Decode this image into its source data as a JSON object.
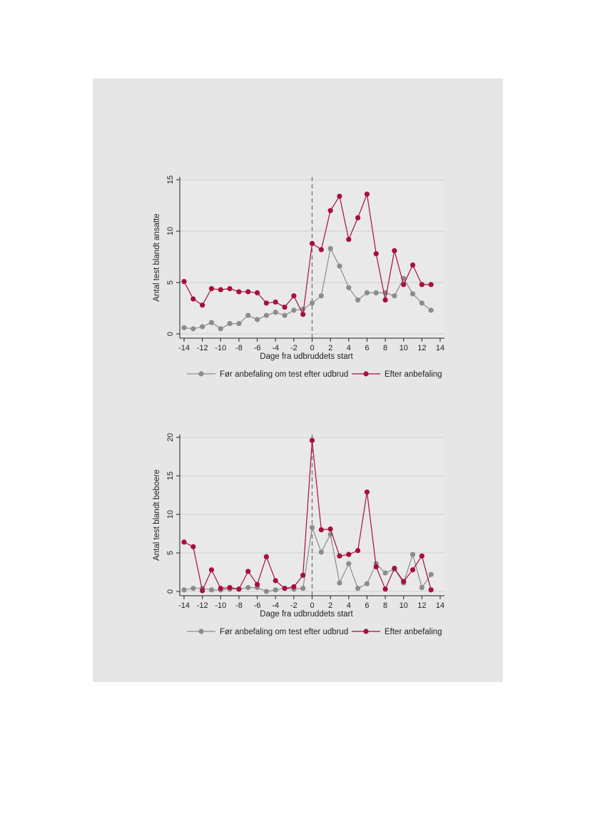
{
  "chart_data": [
    {
      "type": "line",
      "xlabel": "Dage fra udbruddets start",
      "ylabel": "Antal test blandt ansatte",
      "xlim": [
        -14,
        14
      ],
      "ylim": [
        0,
        15
      ],
      "xticks": [
        -14,
        -12,
        -10,
        -8,
        -6,
        -4,
        -2,
        0,
        2,
        4,
        6,
        8,
        10,
        12,
        14
      ],
      "yticks": [
        0,
        5,
        10,
        15
      ],
      "grid": true,
      "vline_x": 0,
      "legend_position": "bottom",
      "x": [
        -14,
        -13,
        -12,
        -11,
        -10,
        -9,
        -8,
        -7,
        -6,
        -5,
        -4,
        -3,
        -2,
        -1,
        0,
        1,
        2,
        3,
        4,
        5,
        6,
        7,
        8,
        9,
        10,
        11,
        12,
        13
      ],
      "series": [
        {
          "name": "Før anbefaling om test efter udbrud",
          "color": "#8c8c8c",
          "values": [
            0.6,
            0.5,
            0.7,
            1.1,
            0.5,
            1.0,
            1.0,
            1.8,
            1.4,
            1.8,
            2.1,
            1.8,
            2.3,
            2.4,
            3.0,
            3.7,
            8.3,
            6.6,
            4.5,
            3.3,
            4.0,
            4.0,
            4.0,
            3.7,
            5.4,
            3.9,
            3.0,
            2.3
          ]
        },
        {
          "name": "Efter anbefaling",
          "color": "#a80f3a",
          "values": [
            5.1,
            3.4,
            2.8,
            4.4,
            4.3,
            4.4,
            4.1,
            4.1,
            4.0,
            3.0,
            3.1,
            2.6,
            3.7,
            1.9,
            8.8,
            8.2,
            12.0,
            13.4,
            9.2,
            11.3,
            13.6,
            7.8,
            3.3,
            8.1,
            4.8,
            6.7,
            4.8,
            4.8
          ]
        }
      ]
    },
    {
      "type": "line",
      "xlabel": "Dage fra udbruddets start",
      "ylabel": "Antal test blandt beboere",
      "xlim": [
        -14,
        14
      ],
      "ylim": [
        0,
        20
      ],
      "xticks": [
        -14,
        -12,
        -10,
        -8,
        -6,
        -4,
        -2,
        0,
        2,
        4,
        6,
        8,
        10,
        12,
        14
      ],
      "yticks": [
        0,
        5,
        10,
        15,
        20
      ],
      "grid": true,
      "vline_x": 0,
      "legend_position": "bottom",
      "x": [
        -14,
        -13,
        -12,
        -11,
        -10,
        -9,
        -8,
        -7,
        -6,
        -5,
        -4,
        -3,
        -2,
        -1,
        0,
        1,
        2,
        3,
        4,
        5,
        6,
        7,
        8,
        9,
        10,
        11,
        12,
        13
      ],
      "series": [
        {
          "name": "Før anbefaling om test efter udbrud",
          "color": "#8c8c8c",
          "values": [
            0.2,
            0.4,
            0.4,
            0.2,
            0.2,
            0.3,
            0.3,
            0.5,
            0.5,
            0.0,
            0.2,
            0.4,
            0.3,
            0.4,
            8.3,
            5.1,
            7.4,
            1.1,
            3.6,
            0.4,
            1.0,
            3.6,
            2.4,
            2.9,
            1.1,
            4.8,
            0.5,
            2.2
          ]
        },
        {
          "name": "Efter anbefaling",
          "color": "#a80f3a",
          "values": [
            6.4,
            5.8,
            0.1,
            2.8,
            0.4,
            0.5,
            0.3,
            2.6,
            0.9,
            4.5,
            1.4,
            0.4,
            0.6,
            2.1,
            19.6,
            8.0,
            8.1,
            4.6,
            4.8,
            5.3,
            12.9,
            3.2,
            0.3,
            3.0,
            1.3,
            2.8,
            4.6,
            0.2
          ]
        }
      ]
    }
  ]
}
